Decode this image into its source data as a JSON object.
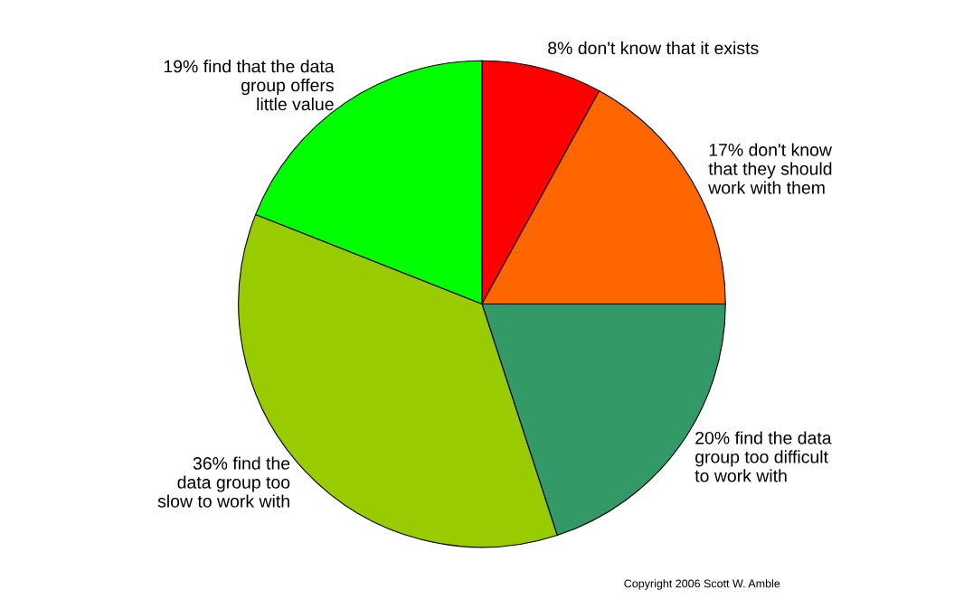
{
  "chart_data": {
    "type": "pie",
    "categories": [
      "8% don't know that it exists",
      "17% don't know\nthat they should\nwork with them",
      "20% find the data\ngroup too difficult\nto work with",
      "36% find the\ndata group too\nslow to work with",
      "19% find that the data\ngroup offers\nlittle value"
    ],
    "values": [
      8,
      17,
      20,
      36,
      19
    ],
    "colors": [
      "#ff0000",
      "#ff6600",
      "#339966",
      "#99cc00",
      "#00ff00"
    ],
    "annotations": [
      "Copyright 2006 Scott W. Amble"
    ]
  }
}
